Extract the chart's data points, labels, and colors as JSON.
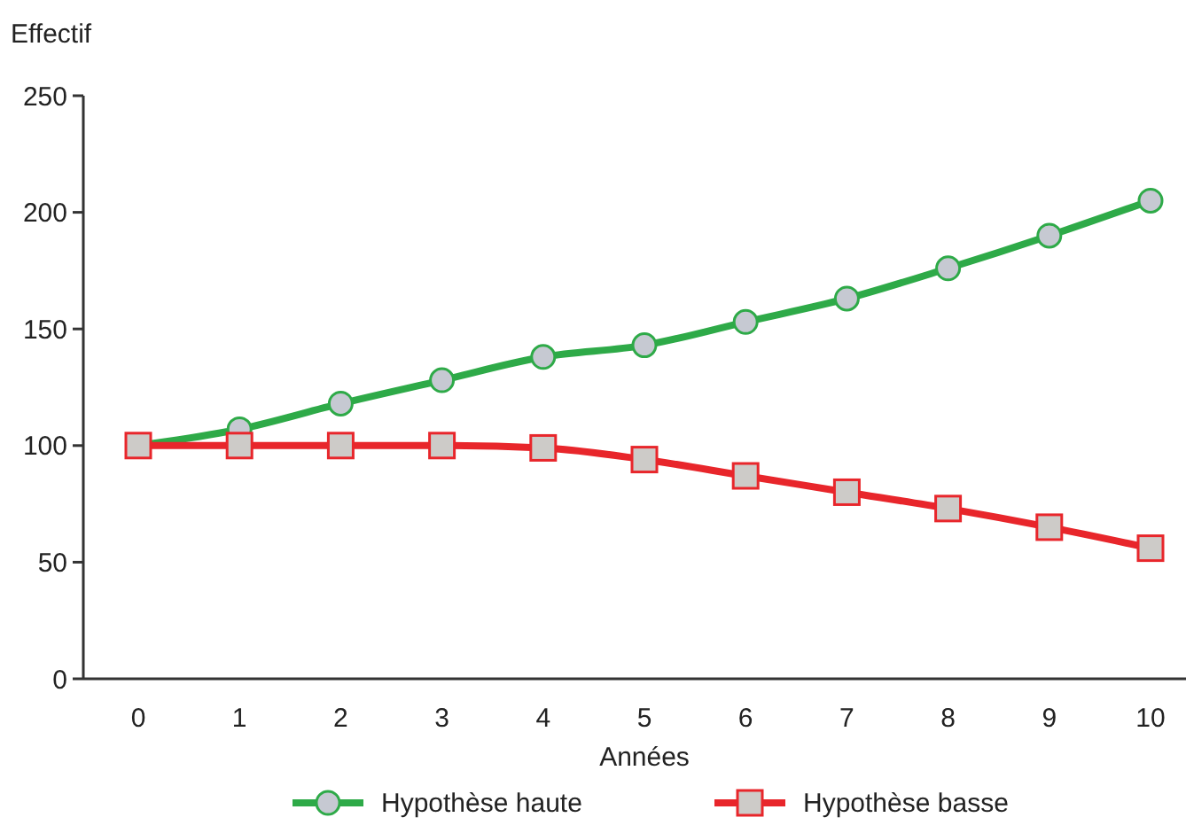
{
  "chart_data": {
    "type": "line",
    "ylabel": "Effectif",
    "xlabel": "Années",
    "categories": [
      "0",
      "1",
      "2",
      "3",
      "4",
      "5",
      "6",
      "7",
      "8",
      "9",
      "10"
    ],
    "series": [
      {
        "name": "Hypothèse haute",
        "color": "#2eaa48",
        "marker": "circle",
        "values": [
          100,
          107,
          118,
          128,
          138,
          143,
          153,
          163,
          176,
          190,
          205
        ]
      },
      {
        "name": "Hypothèse basse",
        "color": "#e8262b",
        "marker": "square",
        "values": [
          100,
          100,
          100,
          100,
          99,
          94,
          87,
          80,
          73,
          65,
          56
        ]
      }
    ],
    "ylim": [
      0,
      250
    ],
    "yticks": [
      0,
      50,
      100,
      150,
      200,
      250
    ],
    "grid": false,
    "legend": "bottom",
    "line_style": "solid"
  }
}
